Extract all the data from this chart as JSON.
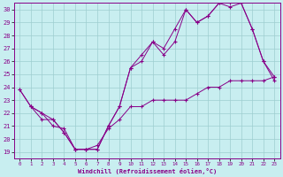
{
  "xlabel": "Windchill (Refroidissement éolien,°C)",
  "bg_color": "#c8eef0",
  "grid_color": "#9ecdd0",
  "line_color": "#880088",
  "xlim": [
    -0.5,
    23.5
  ],
  "ylim": [
    18.5,
    30.5
  ],
  "yticks": [
    19,
    20,
    21,
    22,
    23,
    24,
    25,
    26,
    27,
    28,
    29,
    30
  ],
  "xticks": [
    0,
    1,
    2,
    3,
    4,
    5,
    6,
    7,
    8,
    9,
    10,
    11,
    12,
    13,
    14,
    15,
    16,
    17,
    18,
    19,
    20,
    21,
    22,
    23
  ],
  "line1_x": [
    0,
    1,
    2,
    3,
    4,
    5,
    6,
    7,
    8,
    9,
    10,
    11,
    12,
    13,
    14,
    15,
    16,
    17,
    18,
    19,
    20,
    21,
    22,
    23
  ],
  "line1_y": [
    23.8,
    22.5,
    22.0,
    21.0,
    20.8,
    19.2,
    19.2,
    19.5,
    20.8,
    21.5,
    22.5,
    22.5,
    23.0,
    23.0,
    23.0,
    23.0,
    23.5,
    24.0,
    24.0,
    24.5,
    24.5,
    24.5,
    24.5,
    24.8
  ],
  "line2_x": [
    0,
    1,
    2,
    3,
    4,
    5,
    6,
    7,
    8,
    9,
    10,
    11,
    12,
    13,
    14,
    15,
    16,
    17,
    18,
    19,
    20,
    21,
    22,
    23
  ],
  "line2_y": [
    23.8,
    22.5,
    21.5,
    21.5,
    20.5,
    19.2,
    19.2,
    19.2,
    21.0,
    22.5,
    25.5,
    26.5,
    27.5,
    26.5,
    27.5,
    30.0,
    29.0,
    29.5,
    30.5,
    30.5,
    30.5,
    28.5,
    26.0,
    24.5
  ],
  "line3_x": [
    1,
    2,
    3,
    4,
    5,
    6,
    7,
    8,
    9,
    10,
    11,
    12,
    13,
    14,
    15,
    16,
    17,
    18,
    19,
    20,
    21,
    22,
    23
  ],
  "line3_y": [
    22.5,
    22.0,
    21.5,
    20.5,
    19.2,
    19.2,
    19.2,
    21.0,
    22.5,
    25.5,
    26.0,
    27.5,
    27.0,
    28.5,
    30.0,
    29.0,
    29.5,
    30.5,
    30.2,
    30.5,
    28.5,
    26.0,
    24.8
  ]
}
